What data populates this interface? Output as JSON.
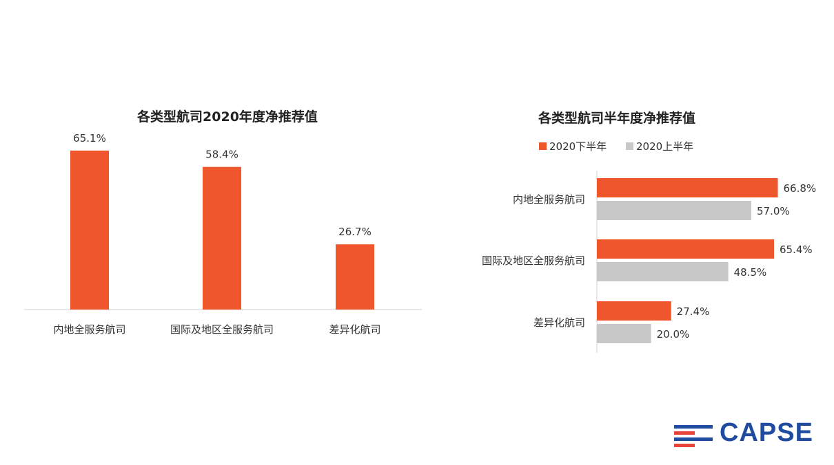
{
  "colors": {
    "orange": "#f0562b",
    "gray": "#c8c8c8",
    "axis": "#d0d0d0"
  },
  "chart_data": [
    {
      "type": "bar",
      "title": "各类型航司2020年度净推荐值",
      "categories": [
        "内地全服务航司",
        "国际及地区全服务航司",
        "差异化航司"
      ],
      "values": [
        65.1,
        58.4,
        26.7
      ],
      "value_labels": [
        "65.1%",
        "58.4%",
        "26.7%"
      ],
      "ylim": [
        0,
        100
      ],
      "grid": false
    },
    {
      "type": "bar",
      "orientation": "horizontal",
      "title": "各类型航司半年度净推荐值",
      "categories": [
        "内地全服务航司",
        "国际及地区全服务航司",
        "差异化航司"
      ],
      "series": [
        {
          "name": "2020下半年",
          "values": [
            66.8,
            65.4,
            27.4
          ],
          "value_labels": [
            "66.8%",
            "65.4%",
            "27.4%"
          ]
        },
        {
          "name": "2020上半年",
          "values": [
            57.0,
            48.5,
            20.0
          ],
          "value_labels": [
            "57.0%",
            "48.5%",
            "20.0%"
          ]
        }
      ],
      "xlim": [
        0,
        100
      ],
      "legend": "top",
      "grid": false
    }
  ],
  "logo": {
    "text": "CAPSE"
  }
}
